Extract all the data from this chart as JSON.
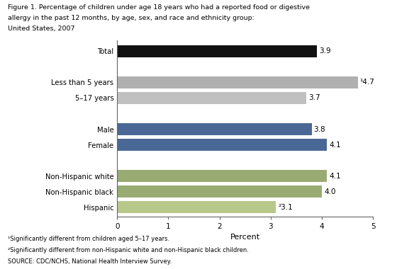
{
  "title_line1": "Figure 1. Percentage of children under age 18 years who had a reported food or digestive",
  "title_line2": "allergy in the past 12 months, by age, sex, and race and ethnicity group:",
  "title_line3": "United States, 2007",
  "categories": [
    "Total",
    "Less than 5 years",
    "5–17 years",
    "Male",
    "Female",
    "Non-Hispanic white",
    "Non-Hispanic black",
    "Hispanic"
  ],
  "values": [
    3.9,
    4.7,
    3.7,
    3.8,
    4.1,
    4.1,
    4.0,
    3.1
  ],
  "bar_colors": [
    "#111111",
    "#b0b0b0",
    "#c0c0c0",
    "#4a6896",
    "#4a6896",
    "#99ab72",
    "#99ab72",
    "#b8c88a"
  ],
  "value_labels": [
    "3.9",
    "¹4.7",
    "3.7",
    "3.8",
    "4.1",
    "4.1",
    "4.0",
    "²3.1"
  ],
  "xlabel": "Percent",
  "xlim": [
    0,
    5
  ],
  "xticks": [
    0,
    1,
    2,
    3,
    4,
    5
  ],
  "footnote1": "¹Significantly different from children aged 5–17 years.",
  "footnote2": "²Significantly different from non-Hispanic white and non-Hispanic black children.",
  "footnote3": "SOURCE: CDC/NCHS, National Health Interview Survey.",
  "background_color": "#ffffff",
  "plot_bg_color": "#ffffff",
  "y_positions": [
    10.5,
    8.5,
    7.5,
    5.5,
    4.5,
    2.5,
    1.5,
    0.5
  ],
  "bar_height": 0.8
}
